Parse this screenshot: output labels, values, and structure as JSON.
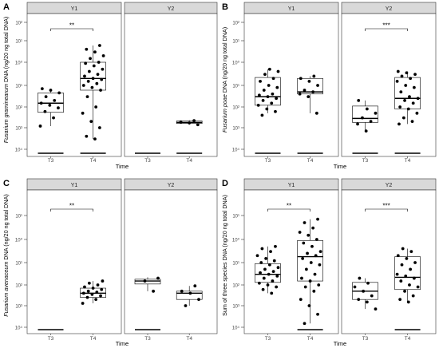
{
  "chart_data": [
    {
      "type": "box",
      "panel_letter": "A",
      "ylabel_italic": "Fusarium graminearum",
      "ylabel_rest": " DNA (ng/20 ng total DNA)",
      "xlabel": "Time",
      "yscale": "log",
      "yticks": [
        "10⁴",
        "10³",
        "10²",
        "10¹",
        "10⁰",
        "10¹",
        "10²"
      ],
      "categories": [
        "T3",
        "T4"
      ],
      "facets": [
        {
          "title": "Y1",
          "groups": [
            {
              "x": "T3",
              "box": {
                "min": 0.0012,
                "q1": 0.0055,
                "median": 0.015,
                "q3": 0.045,
                "max": 0.07
              },
              "points": [
                0.0012,
                0.003,
                0.006,
                0.009,
                0.012,
                0.015,
                0.02,
                0.03,
                0.045,
                0.06,
                0.07
              ],
              "zeros": true
            },
            {
              "x": "T4",
              "box": {
                "min": 0.0003,
                "q1": 0.06,
                "median": 0.2,
                "q3": 1.0,
                "max": 6.0
              },
              "points": [
                0.0003,
                0.0004,
                0.001,
                0.002,
                0.005,
                0.01,
                0.03,
                0.06,
                0.08,
                0.1,
                0.12,
                0.15,
                0.18,
                0.2,
                0.25,
                0.3,
                0.4,
                0.5,
                0.7,
                0.9,
                1.0,
                1.5,
                2.0,
                3.0,
                4.0,
                6.0
              ],
              "zeros": true
            }
          ],
          "significance": {
            "label": "**",
            "from": "T3",
            "to": "T4"
          }
        },
        {
          "title": "Y2",
          "groups": [
            {
              "x": "T3",
              "box": null,
              "points": [],
              "zeros": true
            },
            {
              "x": "T4",
              "box": {
                "min": 0.0014,
                "q1": 0.0016,
                "median": 0.0018,
                "q3": 0.0021,
                "max": 0.0023
              },
              "points": [
                0.0014,
                0.0017,
                0.0019,
                0.0022
              ],
              "zeros": true
            }
          ],
          "significance": null
        }
      ]
    },
    {
      "type": "box",
      "panel_letter": "B",
      "ylabel_italic": "Fusarium poae",
      "ylabel_rest": " DNA (ng/20 ng total DNA)",
      "xlabel": "Time",
      "yscale": "log",
      "yticks": [
        "10⁴",
        "10³",
        "10²",
        "10¹",
        "10⁰",
        "10¹",
        "10²"
      ],
      "categories": [
        "T3",
        "T4"
      ],
      "facets": [
        {
          "title": "Y1",
          "groups": [
            {
              "x": "T3",
              "box": {
                "min": 0.005,
                "q1": 0.012,
                "median": 0.03,
                "q3": 0.22,
                "max": 0.5
              },
              "points": [
                0.004,
                0.006,
                0.008,
                0.012,
                0.015,
                0.02,
                0.025,
                0.03,
                0.035,
                0.04,
                0.06,
                0.08,
                0.1,
                0.15,
                0.2,
                0.3,
                0.4,
                0.5
              ],
              "zeros": true
            },
            {
              "x": "T4",
              "box": {
                "min": 0.005,
                "q1": 0.04,
                "median": 0.05,
                "q3": 0.2,
                "max": 0.25
              },
              "points": [
                0.005,
                0.03,
                0.04,
                0.05,
                0.06,
                0.1,
                0.15,
                0.2,
                0.25
              ],
              "zeros": true
            }
          ],
          "significance": null
        },
        {
          "title": "Y2",
          "groups": [
            {
              "x": "T3",
              "box": {
                "min": 0.0007,
                "q1": 0.0018,
                "median": 0.0028,
                "q3": 0.011,
                "max": 0.02
              },
              "points": [
                0.0007,
                0.0015,
                0.002,
                0.003,
                0.005,
                0.008,
                0.02
              ],
              "zeros": true
            },
            {
              "x": "T4",
              "box": {
                "min": 0.0015,
                "q1": 0.008,
                "median": 0.025,
                "q3": 0.22,
                "max": 0.4
              },
              "points": [
                0.0015,
                0.002,
                0.003,
                0.005,
                0.008,
                0.01,
                0.015,
                0.02,
                0.025,
                0.03,
                0.05,
                0.08,
                0.1,
                0.15,
                0.2,
                0.25,
                0.3,
                0.35,
                0.4
              ],
              "zeros": true
            }
          ],
          "significance": {
            "label": "***",
            "from": "T3",
            "to": "T4"
          }
        }
      ]
    },
    {
      "type": "box",
      "panel_letter": "C",
      "ylabel_italic": "Fusarium avenaceum",
      "ylabel_rest": " DNA (ng/20 ng total DNA)",
      "xlabel": "Time",
      "yscale": "log",
      "yticks": [
        "10⁴",
        "10³",
        "10²",
        "10¹",
        "10⁰",
        "10¹"
      ],
      "categories": [
        "T3",
        "T4"
      ],
      "facets": [
        {
          "title": "Y1",
          "groups": [
            {
              "x": "T3",
              "box": null,
              "points": [],
              "zeros": true
            },
            {
              "x": "T4",
              "box": {
                "min": 0.0013,
                "q1": 0.0025,
                "median": 0.004,
                "q3": 0.007,
                "max": 0.015
              },
              "points": [
                0.0013,
                0.002,
                0.0025,
                0.003,
                0.0035,
                0.004,
                0.0045,
                0.005,
                0.006,
                0.007,
                0.008,
                0.01,
                0.012,
                0.015
              ],
              "zeros": false
            }
          ],
          "significance": {
            "label": "**",
            "from": "T3",
            "to": "T4"
          }
        },
        {
          "title": "Y2",
          "groups": [
            {
              "x": "T3",
              "box": {
                "min": 0.005,
                "q1": 0.011,
                "median": 0.015,
                "q3": 0.018,
                "max": 0.022
              },
              "points": [
                0.005,
                0.015,
                0.02
              ],
              "zeros": true
            },
            {
              "x": "T4",
              "box": {
                "min": 0.001,
                "q1": 0.002,
                "median": 0.004,
                "q3": 0.005,
                "max": 0.009
              },
              "points": [
                0.001,
                0.002,
                0.004,
                0.005,
                0.009
              ],
              "zeros": false
            }
          ],
          "significance": null
        }
      ]
    },
    {
      "type": "box",
      "panel_letter": "D",
      "ylabel_italic": "",
      "ylabel_rest": "Sum of three species DNA (ng/20 ng total DNA)",
      "xlabel": "Time",
      "yscale": "log",
      "yticks": [
        "10⁴",
        "10³",
        "10²",
        "10¹",
        "10⁰",
        "10¹"
      ],
      "categories": [
        "T3",
        "T4"
      ],
      "facets": [
        {
          "title": "Y1",
          "groups": [
            {
              "x": "T3",
              "box": {
                "min": 0.004,
                "q1": 0.013,
                "median": 0.03,
                "q3": 0.09,
                "max": 0.5
              },
              "points": [
                0.004,
                0.006,
                0.008,
                0.01,
                0.012,
                0.015,
                0.02,
                0.025,
                0.03,
                0.035,
                0.04,
                0.05,
                0.06,
                0.08,
                0.1,
                0.12,
                0.15,
                0.2,
                0.3,
                0.4,
                0.5
              ],
              "zeros": false
            },
            {
              "x": "T4",
              "box": {
                "min": 0.00015,
                "q1": 0.015,
                "median": 0.18,
                "q3": 0.9,
                "max": 7.0
              },
              "points": [
                0.00015,
                0.0004,
                0.001,
                0.002,
                0.005,
                0.008,
                0.01,
                0.015,
                0.02,
                0.03,
                0.05,
                0.08,
                0.1,
                0.15,
                0.2,
                0.25,
                0.3,
                0.5,
                0.7,
                1.0,
                1.5,
                2.0,
                3.0,
                5.0,
                7.0
              ],
              "zeros": true
            }
          ],
          "significance": {
            "label": "**",
            "from": "T3",
            "to": "T4"
          }
        },
        {
          "title": "Y2",
          "groups": [
            {
              "x": "T3",
              "box": {
                "min": 0.0007,
                "q1": 0.002,
                "median": 0.005,
                "q3": 0.013,
                "max": 0.02
              },
              "points": [
                0.0007,
                0.0015,
                0.002,
                0.003,
                0.005,
                0.008,
                0.012,
                0.02
              ],
              "zeros": false
            },
            {
              "x": "T4",
              "box": {
                "min": 0.0015,
                "q1": 0.006,
                "median": 0.022,
                "q3": 0.18,
                "max": 0.4
              },
              "points": [
                0.0015,
                0.002,
                0.003,
                0.005,
                0.008,
                0.01,
                0.015,
                0.02,
                0.025,
                0.03,
                0.05,
                0.08,
                0.1,
                0.15,
                0.2,
                0.3,
                0.4
              ],
              "zeros": true
            }
          ],
          "significance": {
            "label": "***",
            "from": "T3",
            "to": "T4"
          }
        }
      ]
    }
  ]
}
